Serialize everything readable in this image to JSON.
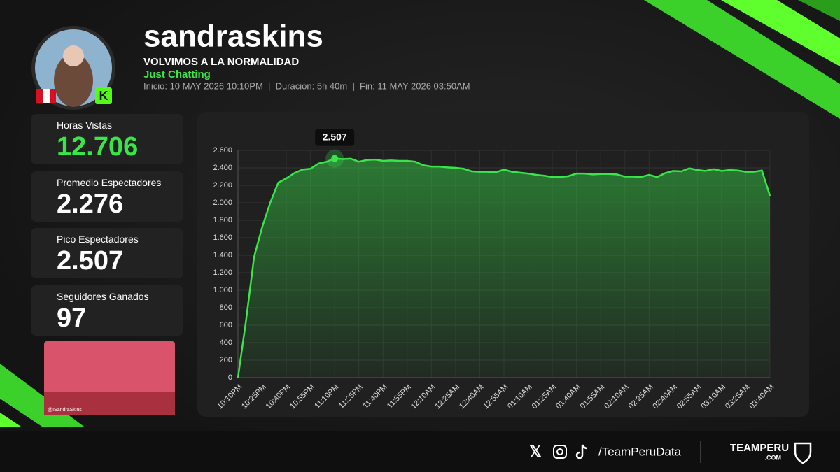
{
  "header": {
    "title": "sandraskins",
    "subtitle": "VOLVIMOS A LA NORMALIDAD",
    "category": "Just Chatting",
    "info": "Inicio: 10 MAY 2026 10:10PM  |  Duración: 5h 40m  |  Fin: 11 MAY 2026 03:50AM"
  },
  "stats": [
    {
      "label": "Horas Vistas",
      "value": "12.706"
    },
    {
      "label": "Promedio Espectadores",
      "value": "2.276"
    },
    {
      "label": "Pico Espectadores",
      "value": "2.507"
    },
    {
      "label": "Seguidores Ganados",
      "value": "97"
    }
  ],
  "clip_caption": "@ISandraSkins",
  "chart_data": {
    "type": "area",
    "color": "#39e64a",
    "annotation": "2.507",
    "grid": true,
    "categories": [
      "10:10PM",
      null,
      null,
      "10:25PM",
      null,
      null,
      "10:40PM",
      null,
      null,
      "10:55PM",
      null,
      null,
      "11:10PM",
      null,
      null,
      "11:25PM",
      null,
      null,
      "11:40PM",
      null,
      null,
      "11:55PM",
      null,
      null,
      "12:10AM",
      null,
      null,
      "12:25AM",
      null,
      null,
      "12:40AM",
      null,
      null,
      "12:55AM",
      null,
      null,
      "01:10AM",
      null,
      null,
      "01:25AM",
      null,
      null,
      "01:40AM",
      null,
      null,
      "01:55AM",
      null,
      null,
      "02:10AM",
      null,
      null,
      "02:25AM",
      null,
      null,
      "02:40AM",
      null,
      null,
      "02:55AM",
      null,
      null,
      "03:10AM",
      null,
      null,
      "03:25AM",
      null,
      null,
      "03:40AM"
    ],
    "values": [
      0,
      650,
      1380,
      1720,
      2000,
      2230,
      2280,
      2340,
      2380,
      2390,
      2450,
      2470,
      2507,
      2500,
      2505,
      2470,
      2490,
      2495,
      2480,
      2485,
      2480,
      2480,
      2470,
      2430,
      2415,
      2415,
      2405,
      2400,
      2390,
      2360,
      2355,
      2355,
      2350,
      2380,
      2355,
      2345,
      2335,
      2320,
      2310,
      2295,
      2295,
      2305,
      2335,
      2335,
      2325,
      2330,
      2330,
      2325,
      2300,
      2300,
      2295,
      2320,
      2295,
      2340,
      2365,
      2360,
      2395,
      2375,
      2365,
      2385,
      2365,
      2375,
      2370,
      2355,
      2355,
      2370,
      2080
    ],
    "ylim": [
      0,
      2600
    ],
    "yticks": [
      0,
      200,
      400,
      600,
      800,
      {
        "value": 1000,
        "label": "1.000"
      },
      {
        "value": 1200,
        "label": "1.200"
      },
      {
        "value": 1400,
        "label": "1.400"
      },
      {
        "value": 1600,
        "label": "1.600"
      },
      {
        "value": 1800,
        "label": "1.800"
      },
      {
        "value": 2000,
        "label": "2.000"
      },
      {
        "value": 2200,
        "label": "2.200"
      },
      {
        "value": 2400,
        "label": "2.400"
      },
      {
        "value": 2600,
        "label": "2.600"
      }
    ]
  },
  "footer": {
    "handle": "/TeamPeruData",
    "brand": "TEAMPERU",
    ".com": ".COM"
  }
}
